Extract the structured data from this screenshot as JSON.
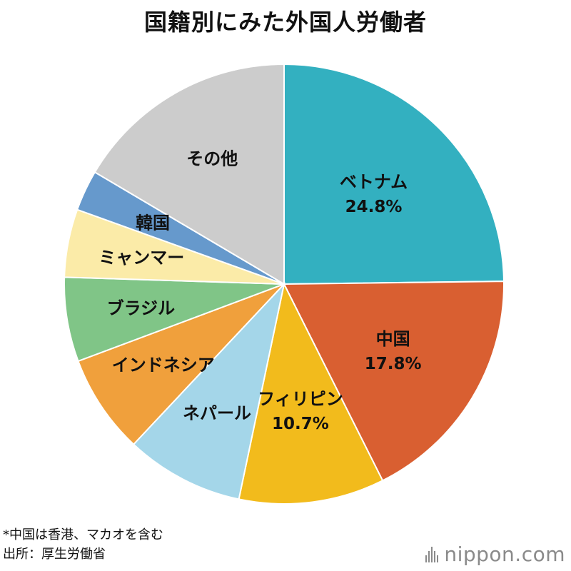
{
  "chart_data": {
    "type": "pie",
    "title": "国籍別にみた外国人労働者",
    "slices": [
      {
        "label": "ベトナム",
        "value": 24.8,
        "value_label": "24.8%",
        "color": "#33b0c0"
      },
      {
        "label": "中国",
        "value": 17.8,
        "value_label": "17.8%",
        "color": "#d95f31"
      },
      {
        "label": "フィリピン",
        "value": 10.7,
        "value_label": "10.7%",
        "color": "#f2bb1c"
      },
      {
        "label": "ネパール",
        "value": 8.7,
        "value_label": "",
        "color": "#a4d6e9"
      },
      {
        "label": "インドネシア",
        "value": 7.3,
        "value_label": "",
        "color": "#f0a03c"
      },
      {
        "label": "ブラジル",
        "value": 6.2,
        "value_label": "",
        "color": "#80c587"
      },
      {
        "label": "ミャンマー",
        "value": 5.0,
        "value_label": "",
        "color": "#fbeba8"
      },
      {
        "label": "韓国",
        "value": 3.0,
        "value_label": "",
        "color": "#6699cc"
      },
      {
        "label": "その他",
        "value": 16.5,
        "value_label": "",
        "color": "#cccccc"
      }
    ]
  },
  "notes": {
    "footnote": "*中国は香港、マカオを含む",
    "source": "出所：厚生労働省"
  },
  "logo": {
    "prefix": "nippon",
    "suffix": ".com",
    "color": "#8a8a8a",
    "dot_color": "#e0001b"
  }
}
